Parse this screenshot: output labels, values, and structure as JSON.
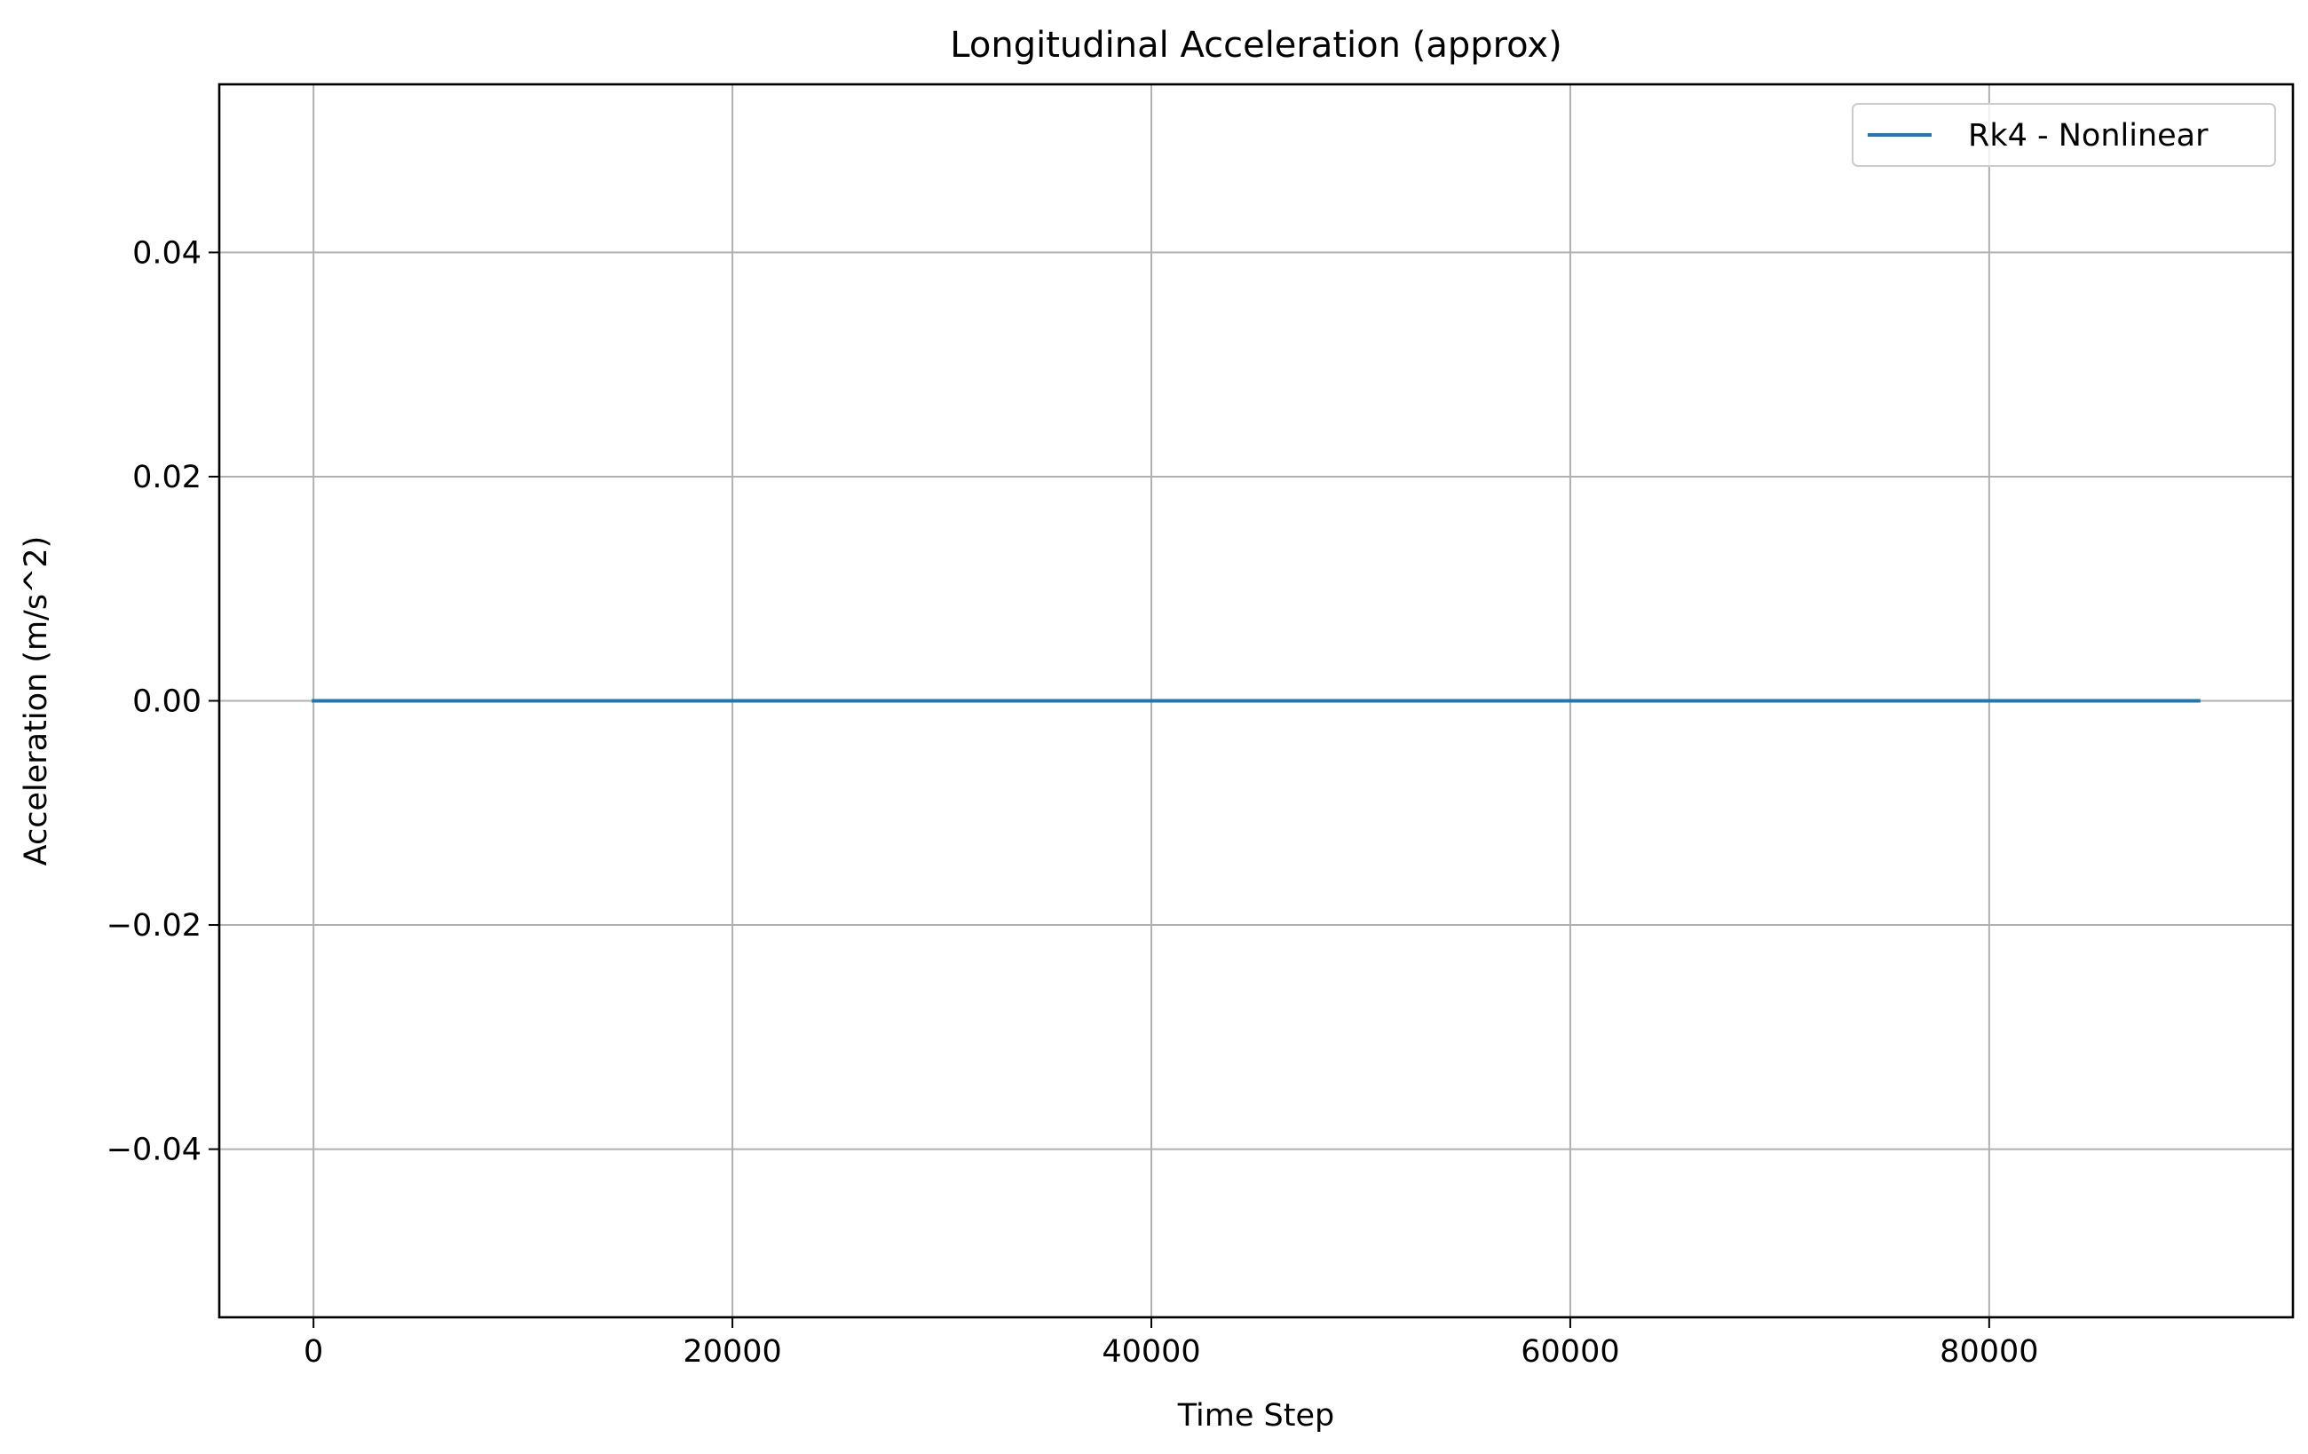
{
  "chart_data": {
    "type": "line",
    "title": "Longitudinal Acceleration (approx)",
    "xlabel": "Time Step",
    "ylabel": "Acceleration (m/s^2)",
    "xlim": [
      -4500,
      94500
    ],
    "ylim": [
      -0.055,
      0.055
    ],
    "xticks": [
      0,
      20000,
      40000,
      60000,
      80000
    ],
    "xtick_labels": [
      "0",
      "20000",
      "40000",
      "60000",
      "80000"
    ],
    "yticks": [
      -0.04,
      -0.02,
      0.0,
      0.02,
      0.04
    ],
    "ytick_labels": [
      "−0.04",
      "−0.02",
      "0.00",
      "0.02",
      "0.04"
    ],
    "grid": true,
    "legend_position": "top-right",
    "series": [
      {
        "name": "Rk4 - Nonlinear",
        "color": "#1f77b4",
        "x": [
          0,
          90000
        ],
        "y": [
          0.0,
          0.0
        ]
      }
    ]
  }
}
